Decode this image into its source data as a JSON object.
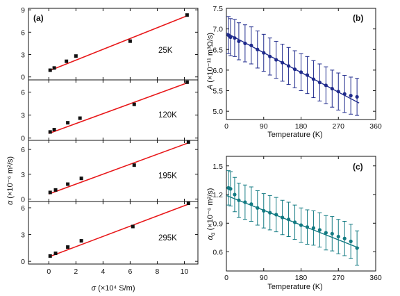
{
  "chart_data": [
    {
      "type": "scatter",
      "panel_label": "(a)",
      "xlabel_symbol": "σ",
      "xlabel_unit": " (×10⁴ S/m)",
      "ylabel_symbol": "α",
      "ylabel_unit": " (×10⁻⁶ m²/s)",
      "xlim": [
        -1.5,
        11
      ],
      "xticks": [
        "0",
        "2",
        "4",
        "6",
        "8",
        "10"
      ],
      "xtick_values": [
        0,
        2,
        4,
        6,
        8,
        10
      ],
      "subplots": [
        {
          "temperature_label": "25K",
          "ylim": [
            -0.4,
            9.2
          ],
          "yticks": [
            "0",
            "3",
            "6",
            "9"
          ],
          "ytick_values": [
            0,
            3,
            6,
            9
          ],
          "x": [
            0.1,
            0.4,
            1.3,
            2.0,
            6.0,
            10.2
          ],
          "y": [
            0.9,
            1.2,
            2.1,
            2.8,
            4.8,
            8.3
          ],
          "fit": [
            [
              0,
              0.8
            ],
            [
              10.2,
              8.2
            ]
          ],
          "color": "#111111",
          "fit_color": "#e8191b"
        },
        {
          "temperature_label": "120K",
          "ylim": [
            -0.3,
            7.6
          ],
          "yticks": [
            "0",
            "3",
            "6"
          ],
          "ytick_values": [
            0,
            3,
            6
          ],
          "x": [
            0.1,
            0.4,
            1.4,
            2.3,
            6.3,
            10.2
          ],
          "y": [
            0.8,
            1.1,
            2.0,
            2.6,
            4.4,
            7.3
          ],
          "fit": [
            [
              0,
              0.6
            ],
            [
              10.2,
              7.2
            ]
          ],
          "color": "#111111",
          "fit_color": "#e8191b"
        },
        {
          "temperature_label": "195K",
          "ylim": [
            -0.3,
            7.1
          ],
          "yticks": [
            "0",
            "3",
            "6"
          ],
          "ytick_values": [
            0,
            3,
            6
          ],
          "x": [
            0.1,
            0.5,
            1.4,
            2.4,
            6.3,
            10.3
          ],
          "y": [
            0.8,
            1.1,
            1.8,
            2.5,
            4.1,
            6.9
          ],
          "fit": [
            [
              0,
              0.6
            ],
            [
              10.3,
              6.8
            ]
          ],
          "color": "#111111",
          "fit_color": "#e8191b"
        },
        {
          "temperature_label": "295K",
          "ylim": [
            -0.3,
            6.7
          ],
          "yticks": [
            "0",
            "3",
            "6"
          ],
          "ytick_values": [
            0,
            3,
            6
          ],
          "x": [
            0.1,
            0.5,
            1.4,
            2.4,
            6.2,
            10.3
          ],
          "y": [
            0.6,
            0.9,
            1.6,
            2.3,
            3.9,
            6.5
          ],
          "fit": [
            [
              0,
              0.5
            ],
            [
              10.3,
              6.4
            ]
          ],
          "color": "#111111",
          "fit_color": "#e8191b"
        }
      ]
    },
    {
      "type": "scatter",
      "panel_label": "(b)",
      "xlabel": "Temperature (K)",
      "ylabel_symbol": "A",
      "ylabel_unit": " (×10⁻¹¹ m³Ω/s)",
      "xlim": [
        0,
        360
      ],
      "ylim": [
        4.8,
        7.5
      ],
      "xticks": [
        "0",
        "90",
        "180",
        "270",
        "360"
      ],
      "xtick_values": [
        0,
        90,
        180,
        270,
        360
      ],
      "yticks": [
        "5.0",
        "5.5",
        "6.0",
        "6.5",
        "7.0",
        "7.5"
      ],
      "ytick_values": [
        5.0,
        5.5,
        6.0,
        6.5,
        7.0,
        7.5
      ],
      "x": [
        5,
        10,
        20,
        30,
        45,
        60,
        75,
        90,
        105,
        120,
        135,
        150,
        165,
        180,
        195,
        210,
        225,
        240,
        255,
        270,
        285,
        300,
        315
      ],
      "y": [
        6.85,
        6.8,
        6.78,
        6.7,
        6.65,
        6.6,
        6.5,
        6.42,
        6.33,
        6.25,
        6.18,
        6.1,
        6.02,
        5.95,
        5.88,
        5.78,
        5.7,
        5.63,
        5.55,
        5.48,
        5.42,
        5.38,
        5.35
      ],
      "error": 0.45,
      "fit": [
        [
          0,
          6.9
        ],
        [
          320,
          5.2
        ]
      ],
      "color": "#1f2a8c"
    },
    {
      "type": "scatter",
      "panel_label": "(c)",
      "xlabel": "Temperature (K)",
      "ylabel_symbol": "α",
      "ylabel_subscript": "α",
      "ylabel_unit": " (×10⁻⁶ m²/s)",
      "xlim": [
        0,
        360
      ],
      "ylim": [
        0.4,
        1.6
      ],
      "xticks": [
        "0",
        "90",
        "180",
        "270",
        "360"
      ],
      "xtick_values": [
        0,
        90,
        180,
        270,
        360
      ],
      "yticks": [
        "0.6",
        "0.9",
        "1.2",
        "1.5"
      ],
      "ytick_values": [
        0.6,
        0.9,
        1.2,
        1.5
      ],
      "x": [
        5,
        10,
        20,
        30,
        45,
        60,
        75,
        90,
        105,
        120,
        135,
        150,
        165,
        180,
        195,
        210,
        225,
        240,
        255,
        270,
        285,
        300,
        315
      ],
      "y": [
        1.27,
        1.26,
        1.2,
        1.14,
        1.12,
        1.1,
        1.06,
        1.03,
        1.01,
        0.99,
        0.96,
        0.94,
        0.91,
        0.88,
        0.86,
        0.85,
        0.83,
        0.8,
        0.79,
        0.76,
        0.74,
        0.71,
        0.64
      ],
      "error": 0.18,
      "fit": [
        [
          0,
          1.19
        ],
        [
          320,
          0.64
        ]
      ],
      "color": "#127a82"
    }
  ]
}
